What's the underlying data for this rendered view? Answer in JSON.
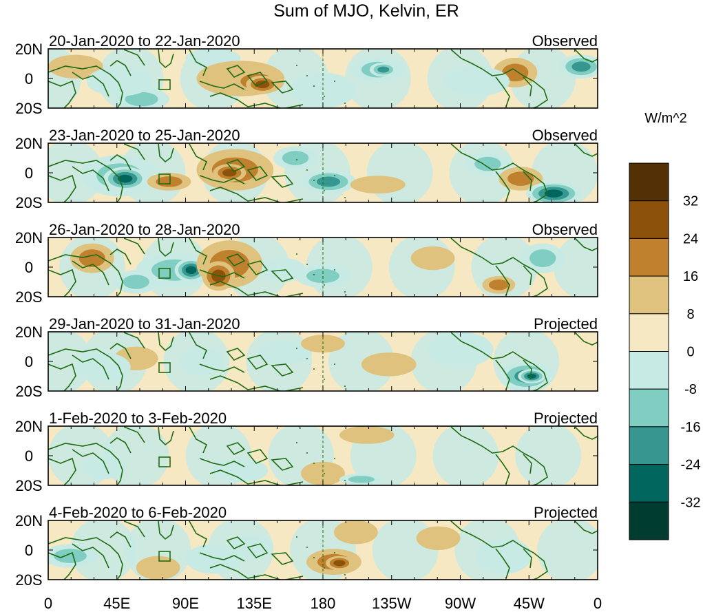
{
  "title": "Sum of MJO, Kelvin, ER",
  "colorbar": {
    "units": "W/m^2",
    "levels": [
      "32",
      "24",
      "16",
      "8",
      "0",
      "-8",
      "-16",
      "-24",
      "-32"
    ],
    "colors": [
      "#543005",
      "#8c510a",
      "#bf812d",
      "#dfc27d",
      "#f6e8c3",
      "#c7eae5",
      "#80cdc1",
      "#35978f",
      "#01665e",
      "#003c30"
    ]
  },
  "axes": {
    "y_ticks": [
      "20N",
      "0",
      "20S"
    ],
    "x_ticks": [
      "0",
      "45E",
      "90E",
      "135E",
      "180",
      "135W",
      "90W",
      "45W",
      "0"
    ],
    "coastline_color": "#1e6b12"
  },
  "panels": [
    {
      "date": "20-Jan-2020 to 22-Jan-2020",
      "status": "Observed"
    },
    {
      "date": "23-Jan-2020 to 25-Jan-2020",
      "status": "Observed"
    },
    {
      "date": "26-Jan-2020 to 28-Jan-2020",
      "status": "Observed"
    },
    {
      "date": "29-Jan-2020 to 31-Jan-2020",
      "status": "Projected"
    },
    {
      "date": "1-Feb-2020 to 3-Feb-2020",
      "status": "Projected"
    },
    {
      "date": "4-Feb-2020 to 6-Feb-2020",
      "status": "Projected"
    }
  ]
}
